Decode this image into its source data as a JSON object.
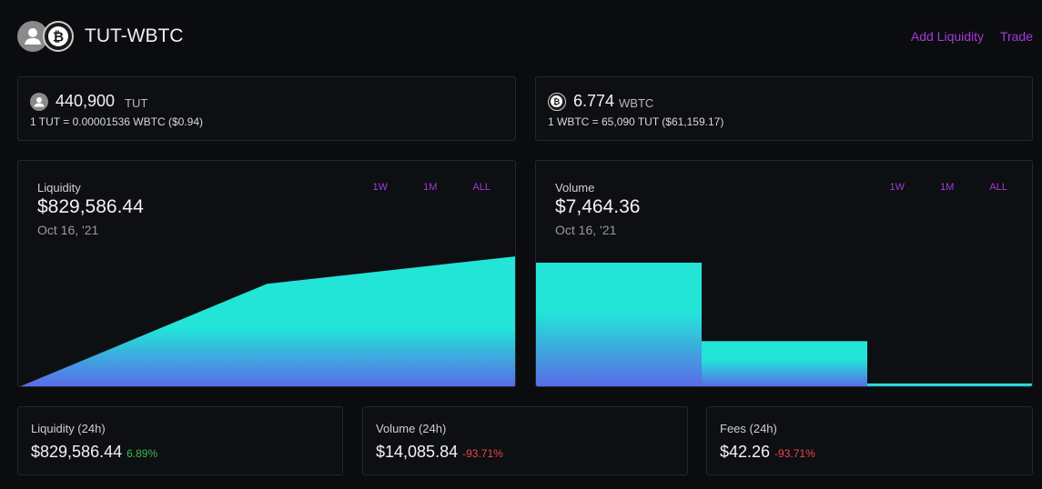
{
  "header": {
    "title": "TUT-WBTC",
    "add_liquidity": "Add Liquidity",
    "trade": "Trade"
  },
  "tokens": {
    "token0_icon": "user-avatar-icon",
    "token1_icon": "bitcoin-icon"
  },
  "reserves": [
    {
      "amount": "440,900",
      "symbol": "TUT",
      "rate": "1 TUT = 0.00001536 WBTC ($0.94)",
      "icon": "user-avatar-icon"
    },
    {
      "amount": "6.774",
      "symbol": "WBTC",
      "rate": "1 WBTC = 65,090 TUT ($61,159.17)",
      "icon": "bitcoin-icon"
    }
  ],
  "liquidity_chart": {
    "label": "Liquidity",
    "value": "$829,586.44",
    "date": "Oct 16, '21",
    "ranges": [
      "1W",
      "1M",
      "ALL"
    ]
  },
  "volume_chart": {
    "label": "Volume",
    "value": "$7,464.36",
    "date": "Oct 16, '21",
    "ranges": [
      "1W",
      "1M",
      "ALL"
    ]
  },
  "chart_data": [
    {
      "type": "area",
      "series": [
        {
          "values": [
            0,
            0.79,
            1.0
          ]
        }
      ],
      "ylim": [
        0,
        1.0
      ],
      "grid": false,
      "colors": [
        "#22e5d8",
        "#5a6ae6"
      ]
    },
    {
      "type": "bar",
      "series": [
        {
          "values": [
            1.0,
            0.37,
            0.03
          ]
        }
      ],
      "ylim": [
        0,
        1.0
      ],
      "grid": false,
      "colors": [
        "#22e5d8",
        "#5a6ae6"
      ]
    }
  ],
  "stats": [
    {
      "label": "Liquidity (24h)",
      "value": "$829,586.44",
      "change": "6.89%",
      "change_color": "#3fb950"
    },
    {
      "label": "Volume (24h)",
      "value": "$14,085.84",
      "change": "-93.71%",
      "change_color": "#e5484d"
    },
    {
      "label": "Fees (24h)",
      "value": "$42.26",
      "change": "-93.71%",
      "change_color": "#e5484d"
    }
  ]
}
